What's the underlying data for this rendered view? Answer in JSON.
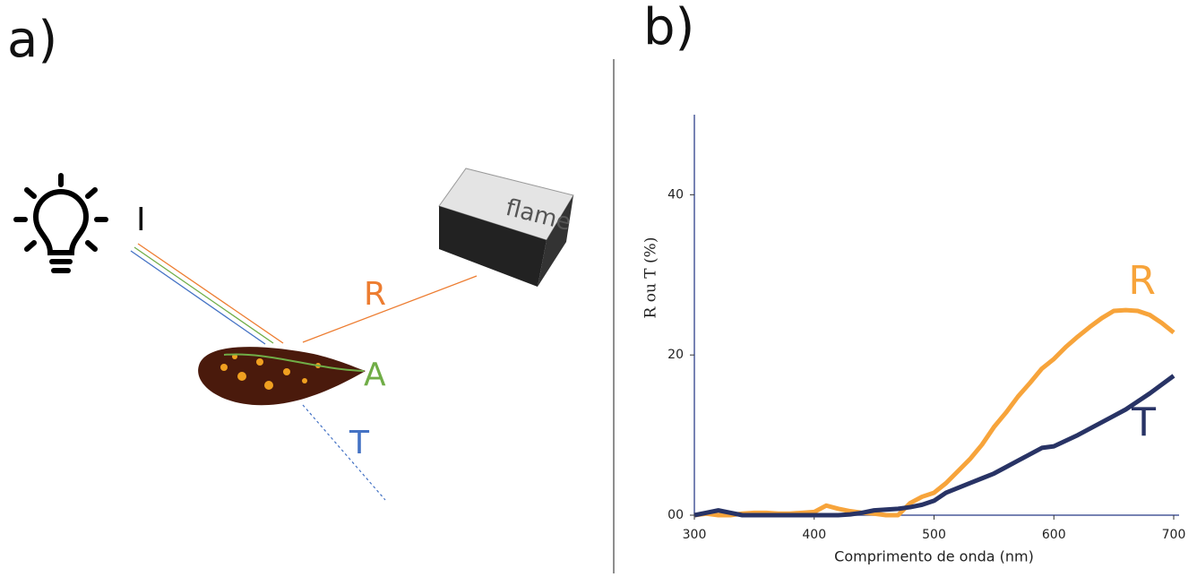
{
  "panel_a": {
    "label": "a)",
    "incident": "I",
    "reflected": "R",
    "absorbed": "A",
    "transmitted": "T",
    "device": "flame"
  },
  "panel_b": {
    "label": "b)"
  },
  "chart_data": {
    "type": "line",
    "x_label": "Comprimento de onda (nm)",
    "y_label": "R ou T (%)",
    "x": [
      300,
      310,
      320,
      330,
      340,
      350,
      360,
      370,
      380,
      390,
      400,
      410,
      420,
      430,
      440,
      450,
      460,
      470,
      480,
      490,
      500,
      510,
      520,
      530,
      540,
      550,
      560,
      570,
      580,
      590,
      600,
      610,
      620,
      630,
      640,
      650,
      660,
      670,
      680,
      690,
      700
    ],
    "series": [
      {
        "name": "R",
        "color": "#f7a43b",
        "values": [
          0,
          0.2,
          0,
          0,
          0.2,
          0.3,
          0.3,
          0.2,
          0.2,
          0.3,
          0.4,
          1.2,
          0.8,
          0.5,
          0.3,
          0.2,
          0,
          0,
          1.5,
          2.3,
          2.8,
          4,
          5.5,
          7,
          8.8,
          11,
          12.8,
          14.8,
          16.5,
          18.3,
          19.5,
          21,
          22.3,
          23.5,
          24.6,
          25.5,
          25.6,
          25.5,
          25,
          24,
          22.8
        ]
      },
      {
        "name": "T",
        "color": "#283365",
        "values": [
          0,
          0.3,
          0.6,
          0.3,
          0,
          0,
          0,
          0,
          0,
          0,
          0,
          0,
          0,
          0.1,
          0.3,
          0.6,
          0.7,
          0.8,
          1,
          1.3,
          1.8,
          2.8,
          3.4,
          4,
          4.6,
          5.2,
          6,
          6.8,
          7.6,
          8.4,
          8.6,
          9.3,
          10,
          10.8,
          11.6,
          12.4,
          13.2,
          14.2,
          15.2,
          16.3,
          17.4
        ]
      }
    ],
    "xlim": [
      300,
      700
    ],
    "ylim": [
      0,
      50
    ],
    "xticks": [
      300,
      400,
      500,
      600,
      700
    ],
    "yticks": [
      {
        "value": 0,
        "label": "00"
      },
      20,
      40
    ]
  }
}
